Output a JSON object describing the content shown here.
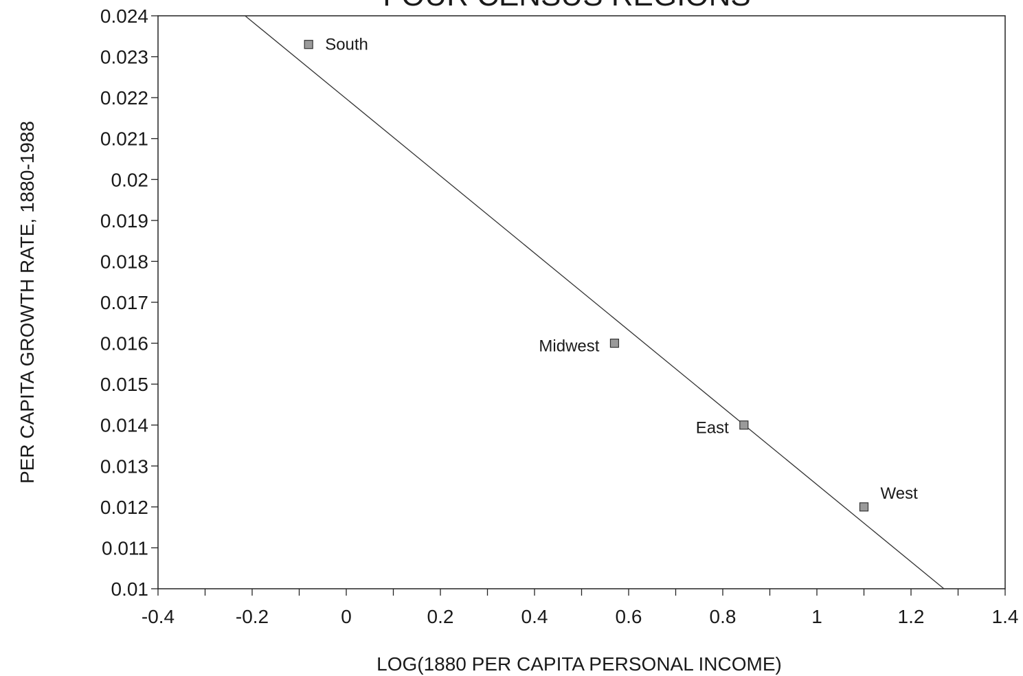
{
  "chart_data": {
    "type": "scatter",
    "title": "FOUR CENSUS REGIONS",
    "xlabel": "LOG(1880 PER CAPITA PERSONAL INCOME)",
    "ylabel": "PER CAPITA GROWTH RATE, 1880-1988",
    "xlim": [
      -0.4,
      1.4
    ],
    "ylim": [
      0.01,
      0.024
    ],
    "x_ticks": [
      -0.4,
      -0.3,
      -0.2,
      -0.1,
      0,
      0.1,
      0.2,
      0.3,
      0.4,
      0.5,
      0.6,
      0.7,
      0.8,
      0.9,
      1,
      1.1,
      1.2,
      1.3,
      1.4
    ],
    "x_tick_labels": [
      "-0.4",
      "-0.2",
      "0",
      "0.2",
      "0.4",
      "0.6",
      "0.8",
      "1",
      "1.2",
      "1.4"
    ],
    "x_tick_label_values": [
      -0.4,
      -0.2,
      0,
      0.2,
      0.4,
      0.6,
      0.8,
      1,
      1.2,
      1.4
    ],
    "y_tick_labels": [
      "0.01",
      "0.011",
      "0.012",
      "0.013",
      "0.014",
      "0.015",
      "0.016",
      "0.017",
      "0.018",
      "0.019",
      "0.02",
      "0.021",
      "0.022",
      "0.023",
      "0.024"
    ],
    "y_tick_values": [
      0.01,
      0.011,
      0.012,
      0.013,
      0.014,
      0.015,
      0.016,
      0.017,
      0.018,
      0.019,
      0.02,
      0.021,
      0.022,
      0.023,
      0.024
    ],
    "grid": false,
    "marker_color": "#9a9a9a",
    "line_color": "#333333",
    "points": [
      {
        "label": "South",
        "x": -0.08,
        "y": 0.0233,
        "label_side": "right"
      },
      {
        "label": "Midwest",
        "x": 0.57,
        "y": 0.016,
        "label_side": "left"
      },
      {
        "label": "East",
        "x": 0.845,
        "y": 0.014,
        "label_side": "left"
      },
      {
        "label": "West",
        "x": 1.1,
        "y": 0.012,
        "label_side": "upper-right"
      }
    ],
    "fit_line": {
      "x1": -0.215,
      "y1": 0.024,
      "x2": 1.27,
      "y2": 0.01
    }
  }
}
